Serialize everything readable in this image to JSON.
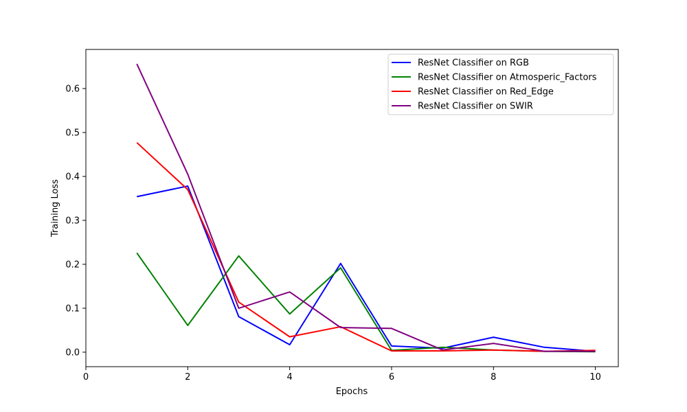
{
  "chart_data": {
    "type": "line",
    "title": "",
    "xlabel": "Epochs",
    "ylabel": "Training Loss",
    "xlim": [
      0,
      10.45
    ],
    "ylim": [
      -0.033,
      0.689
    ],
    "xticks": [
      0,
      2,
      4,
      6,
      8,
      10
    ],
    "yticks": [
      0.0,
      0.1,
      0.2,
      0.3,
      0.4,
      0.5,
      0.6
    ],
    "xtick_labels": [
      "0",
      "2",
      "4",
      "6",
      "8",
      "10"
    ],
    "ytick_labels": [
      "0.0",
      "0.1",
      "0.2",
      "0.3",
      "0.4",
      "0.5",
      "0.6"
    ],
    "grid": false,
    "legend_position": "top-right",
    "x": [
      1,
      2,
      3,
      4,
      5,
      6,
      7,
      8,
      9,
      10
    ],
    "series": [
      {
        "name": "ResNet Classifier on RGB",
        "color": "#0000ff",
        "values": [
          0.354,
          0.378,
          0.081,
          0.017,
          0.202,
          0.014,
          0.009,
          0.034,
          0.011,
          0.002
        ]
      },
      {
        "name": "ResNet Classifier on Atmosperic_Factors",
        "color": "#008000",
        "values": [
          0.226,
          0.061,
          0.219,
          0.087,
          0.192,
          0.004,
          0.011,
          0.005,
          0.002,
          0.001
        ]
      },
      {
        "name": "ResNet Classifier on Red_Edge",
        "color": "#ff0000",
        "values": [
          0.477,
          0.37,
          0.114,
          0.035,
          0.058,
          0.003,
          0.003,
          0.005,
          0.002,
          0.004
        ]
      },
      {
        "name": "ResNet Classifier on SWIR",
        "color": "#800080",
        "values": [
          0.656,
          0.405,
          0.1,
          0.137,
          0.056,
          0.054,
          0.005,
          0.02,
          0.002,
          0.002
        ]
      }
    ]
  }
}
